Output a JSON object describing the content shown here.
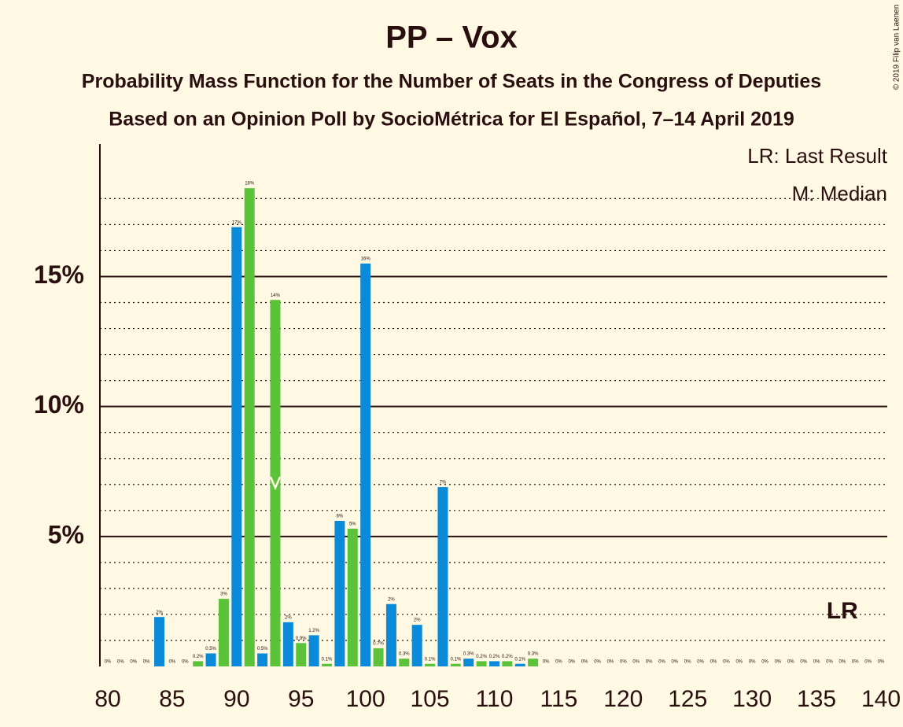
{
  "chart_data": {
    "type": "bar",
    "title": "PP – Vox",
    "subtitle": "Probability Mass Function for the Number of Seats in the Congress of Deputies",
    "subtitle2": "Based on an Opinion Poll by SocioMétrica for El Español, 7–14 April 2019",
    "copyright": "© 2019 Filip van Laenen",
    "legend_lr": "LR: Last Result",
    "legend_median": "M: Median",
    "lr_label": "LR",
    "x": [
      80,
      81,
      82,
      83,
      84,
      85,
      86,
      87,
      88,
      89,
      90,
      91,
      92,
      93,
      94,
      95,
      96,
      97,
      98,
      99,
      100,
      101,
      102,
      103,
      104,
      105,
      106,
      107,
      108,
      109,
      110,
      111,
      112,
      113,
      114,
      115,
      116,
      117,
      118,
      119,
      120,
      121,
      122,
      123,
      124,
      125,
      126,
      127,
      128,
      129,
      130,
      131,
      132,
      133,
      134,
      135,
      136,
      137,
      138,
      139,
      140
    ],
    "values": [
      0,
      0,
      0,
      0,
      1.9,
      0,
      0,
      0.2,
      0.5,
      2.6,
      16.9,
      18.4,
      0.5,
      14.1,
      1.7,
      0.9,
      1.2,
      0.1,
      5.6,
      5.3,
      15.5,
      0.7,
      2.4,
      0.3,
      1.6,
      0.1,
      6.9,
      0.1,
      0.3,
      0.2,
      0.2,
      0.2,
      0.1,
      0.3,
      0,
      0,
      0,
      0,
      0,
      0,
      0,
      0,
      0,
      0,
      0,
      0,
      0,
      0,
      0,
      0,
      0,
      0,
      0,
      0,
      0,
      0,
      0,
      0,
      0,
      0,
      0
    ],
    "value_labels": [
      "0%",
      "0%",
      "0%",
      "0%",
      "2%",
      "0%",
      "0%",
      "0.2%",
      "0.5%",
      "3%",
      "17%",
      "18%",
      "0.5%",
      "14%",
      "2%",
      "0.9%",
      "1.2%",
      "0.1%",
      "6%",
      "5%",
      "16%",
      "0.7%",
      "2%",
      "0.3%",
      "2%",
      "0.1%",
      "7%",
      "0.1%",
      "0.3%",
      "0.2%",
      "0.2%",
      "0.2%",
      "0.1%",
      "0.3%",
      "0%",
      "0%",
      "0%",
      "0%",
      "0%",
      "0%",
      "0%",
      "0%",
      "0%",
      "0%",
      "0%",
      "0%",
      "0%",
      "0%",
      "0%",
      "0%",
      "0%",
      "0%",
      "0%",
      "0%",
      "0%",
      "0%",
      "0%",
      "0%",
      "0%",
      "0%",
      "0%"
    ],
    "bar_colors": [
      "#0a8ad8",
      "#5bc23a",
      "#0a8ad8",
      "#5bc23a",
      "#0a8ad8",
      "#5bc23a",
      "#0a8ad8",
      "#5bc23a",
      "#0a8ad8",
      "#5bc23a",
      "#0a8ad8",
      "#5bc23a",
      "#0a8ad8",
      "#5bc23a",
      "#0a8ad8",
      "#5bc23a",
      "#0a8ad8",
      "#5bc23a",
      "#0a8ad8",
      "#5bc23a",
      "#0a8ad8",
      "#5bc23a",
      "#0a8ad8",
      "#5bc23a",
      "#0a8ad8",
      "#5bc23a",
      "#0a8ad8",
      "#5bc23a",
      "#0a8ad8",
      "#5bc23a",
      "#0a8ad8",
      "#5bc23a",
      "#0a8ad8",
      "#5bc23a",
      "#0a8ad8",
      "#5bc23a",
      "#0a8ad8",
      "#5bc23a",
      "#0a8ad8",
      "#5bc23a",
      "#0a8ad8",
      "#5bc23a",
      "#0a8ad8",
      "#5bc23a",
      "#0a8ad8",
      "#5bc23a",
      "#0a8ad8",
      "#5bc23a",
      "#0a8ad8",
      "#5bc23a",
      "#0a8ad8",
      "#5bc23a",
      "#0a8ad8",
      "#5bc23a",
      "#0a8ad8",
      "#5bc23a",
      "#0a8ad8",
      "#5bc23a",
      "#0a8ad8",
      "#5bc23a",
      "#0a8ad8"
    ],
    "median": 93,
    "last_result": 137,
    "xlim": [
      80,
      140
    ],
    "xticks": [
      80,
      85,
      90,
      95,
      100,
      105,
      110,
      115,
      120,
      125,
      130,
      135,
      140
    ],
    "ylim": [
      0,
      20.1
    ],
    "yticks": [
      {
        "value": 5,
        "label": "5%"
      },
      {
        "value": 10,
        "label": "10%"
      },
      {
        "value": 15,
        "label": "15%"
      }
    ],
    "minor_yticks": [
      1,
      2,
      3,
      4,
      6,
      7,
      8,
      9,
      11,
      12,
      13,
      14,
      16,
      17,
      18
    ]
  }
}
